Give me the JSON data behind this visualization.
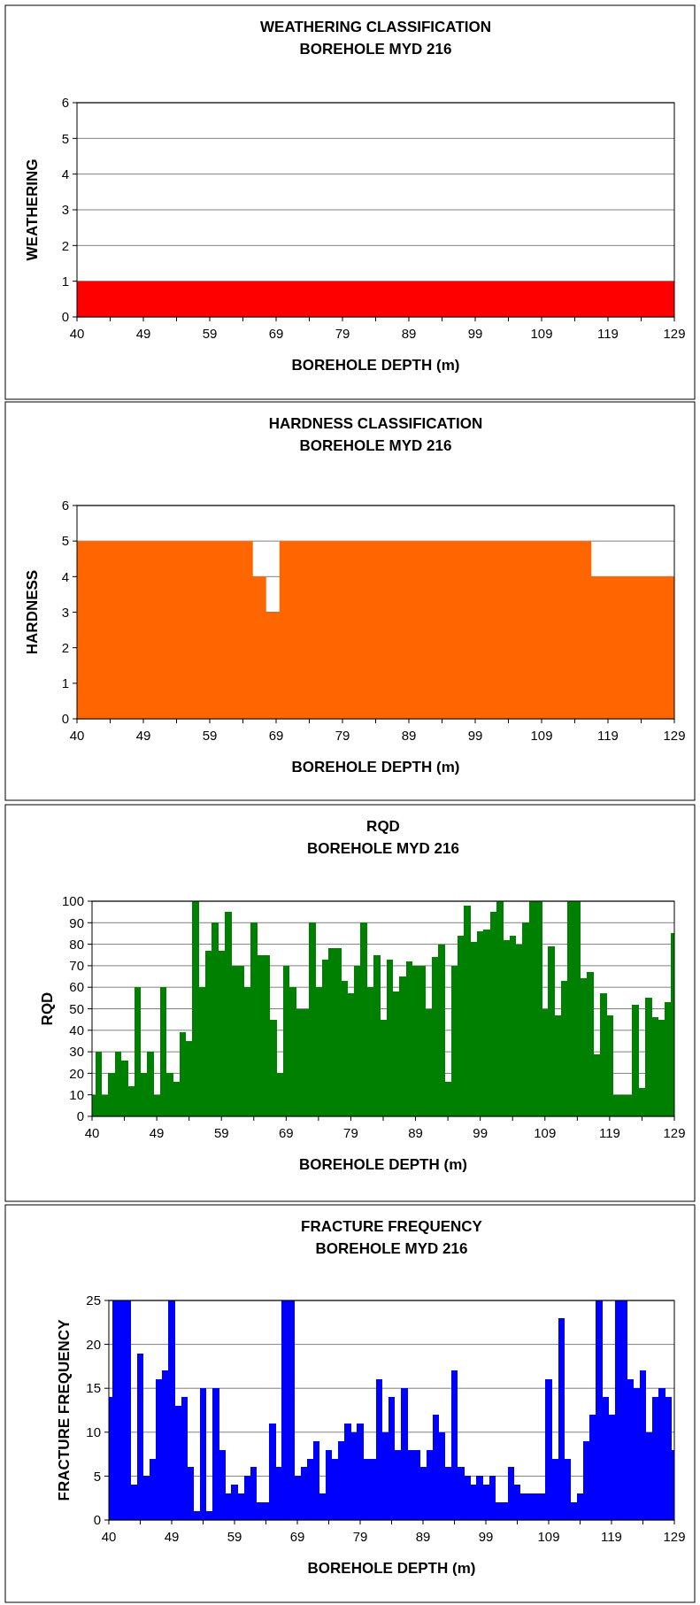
{
  "chart_data": [
    {
      "type": "area",
      "title": "WEATHERING CLASSIFICATION",
      "subtitle": "BOREHOLE MYD 216",
      "xlabel": "BOREHOLE DEPTH (m)",
      "ylabel": "WEATHERING",
      "color": "#ff0000",
      "ylim": [
        0,
        6
      ],
      "yticks": [
        0,
        1,
        2,
        3,
        4,
        5,
        6
      ],
      "grid": "y",
      "categories": [
        "40",
        null,
        null,
        null,
        null,
        null,
        null,
        null,
        null,
        null,
        "49",
        null,
        null,
        null,
        null,
        null,
        null,
        null,
        null,
        null,
        "59",
        null,
        null,
        null,
        null,
        null,
        null,
        null,
        null,
        null,
        "69",
        null,
        null,
        null,
        null,
        null,
        null,
        null,
        null,
        null,
        "79",
        null,
        null,
        null,
        null,
        null,
        null,
        null,
        null,
        null,
        "89",
        null,
        null,
        null,
        null,
        null,
        null,
        null,
        null,
        null,
        "99",
        null,
        null,
        null,
        null,
        null,
        null,
        null,
        null,
        null,
        "109",
        null,
        null,
        null,
        null,
        null,
        null,
        null,
        null,
        null,
        "119",
        null,
        null,
        null,
        null,
        null,
        null,
        null,
        null,
        null,
        "129"
      ],
      "values": [
        1,
        1,
        1,
        1,
        1,
        1,
        1,
        1,
        1,
        1,
        1,
        1,
        1,
        1,
        1,
        1,
        1,
        1,
        1,
        1,
        1,
        1,
        1,
        1,
        1,
        1,
        1,
        1,
        1,
        1,
        1,
        1,
        1,
        1,
        1,
        1,
        1,
        1,
        1,
        1,
        1,
        1,
        1,
        1,
        1,
        1,
        1,
        1,
        1,
        1,
        1,
        1,
        1,
        1,
        1,
        1,
        1,
        1,
        1,
        1,
        1,
        1,
        1,
        1,
        1,
        1,
        1,
        1,
        1,
        1,
        1,
        1,
        1,
        1,
        1,
        1,
        1,
        1,
        1,
        1,
        1,
        1,
        1,
        1,
        1,
        1,
        1,
        1,
        1,
        1,
        1
      ]
    },
    {
      "type": "area",
      "title": "HARDNESS CLASSIFICATION",
      "subtitle": "BOREHOLE MYD 216",
      "xlabel": "BOREHOLE DEPTH (m)",
      "ylabel": "HARDNESS",
      "color": "#ff6600",
      "ylim": [
        0,
        6
      ],
      "yticks": [
        0,
        1,
        2,
        3,
        4,
        5,
        6
      ],
      "grid": "y",
      "categories": [
        "40",
        null,
        null,
        null,
        null,
        null,
        null,
        null,
        null,
        null,
        "49",
        null,
        null,
        null,
        null,
        null,
        null,
        null,
        null,
        null,
        "59",
        null,
        null,
        null,
        null,
        null,
        null,
        null,
        null,
        null,
        "69",
        null,
        null,
        null,
        null,
        null,
        null,
        null,
        null,
        null,
        "79",
        null,
        null,
        null,
        null,
        null,
        null,
        null,
        null,
        null,
        "89",
        null,
        null,
        null,
        null,
        null,
        null,
        null,
        null,
        null,
        "99",
        null,
        null,
        null,
        null,
        null,
        null,
        null,
        null,
        null,
        "109",
        null,
        null,
        null,
        null,
        null,
        null,
        null,
        null,
        null,
        "119",
        null,
        null,
        null,
        null,
        null,
        null,
        null,
        null,
        null,
        "129"
      ],
      "values": [
        5,
        5,
        5,
        5,
        5,
        5,
        5,
        5,
        5,
        5,
        5,
        5,
        5,
        5,
        5,
        5,
        5,
        5,
        5,
        5,
        5,
        5,
        5,
        5,
        5,
        5,
        5,
        4,
        4,
        3,
        3,
        5,
        5,
        5,
        5,
        5,
        5,
        5,
        5,
        5,
        5,
        5,
        5,
        5,
        5,
        5,
        5,
        5,
        5,
        5,
        5,
        5,
        5,
        5,
        5,
        5,
        5,
        5,
        5,
        5,
        5,
        5,
        5,
        5,
        5,
        5,
        5,
        5,
        5,
        5,
        5,
        5,
        5,
        5,
        5,
        5,
        5,
        5,
        4,
        4,
        4,
        4,
        4,
        4,
        4,
        4,
        4,
        4,
        4,
        4,
        4
      ]
    },
    {
      "type": "bar",
      "title": "RQD",
      "subtitle": "BOREHOLE MYD 216",
      "xlabel": "BOREHOLE DEPTH (m)",
      "ylabel": "RQD",
      "color": "#008000",
      "ylim": [
        0,
        100
      ],
      "yticks": [
        0,
        10,
        20,
        30,
        40,
        50,
        60,
        70,
        80,
        90,
        100
      ],
      "grid": "y",
      "categories": [
        "40",
        null,
        null,
        null,
        null,
        null,
        null,
        null,
        null,
        null,
        "49",
        null,
        null,
        null,
        null,
        null,
        null,
        null,
        null,
        null,
        "59",
        null,
        null,
        null,
        null,
        null,
        null,
        null,
        null,
        null,
        "69",
        null,
        null,
        null,
        null,
        null,
        null,
        null,
        null,
        null,
        "79",
        null,
        null,
        null,
        null,
        null,
        null,
        null,
        null,
        null,
        "89",
        null,
        null,
        null,
        null,
        null,
        null,
        null,
        null,
        null,
        "99",
        null,
        null,
        null,
        null,
        null,
        null,
        null,
        null,
        null,
        "109",
        null,
        null,
        null,
        null,
        null,
        null,
        null,
        null,
        null,
        "119",
        null,
        null,
        null,
        null,
        null,
        null,
        null,
        null,
        null,
        "129"
      ],
      "values": [
        10,
        30,
        10,
        20,
        30,
        26,
        14,
        60,
        20,
        30,
        10,
        60,
        20,
        16,
        39,
        35,
        100,
        60,
        77,
        90,
        77,
        95,
        70,
        70,
        60,
        90,
        75,
        75,
        45,
        20,
        70,
        60,
        50,
        50,
        90,
        60,
        73,
        78,
        78,
        63,
        57,
        70,
        90,
        60,
        75,
        45,
        73,
        58,
        65,
        72,
        70,
        70,
        50,
        74,
        80,
        16,
        70,
        84,
        98,
        81,
        86,
        87,
        95,
        100,
        82,
        84,
        80,
        90,
        100,
        100,
        50,
        79,
        47,
        63,
        100,
        100,
        64,
        67,
        29,
        57,
        47,
        10,
        10,
        10,
        52,
        13,
        55,
        46,
        45,
        53,
        85
      ]
    },
    {
      "type": "bar",
      "title": "FRACTURE FREQUENCY",
      "subtitle": "BOREHOLE MYD 216",
      "xlabel": "BOREHOLE DEPTH (m)",
      "ylabel": "FRACTURE FREQUENCY",
      "color": "#0000ff",
      "ylim": [
        0,
        25
      ],
      "yticks": [
        0,
        5,
        10,
        15,
        20,
        25
      ],
      "grid": "y",
      "categories": [
        "40",
        null,
        null,
        null,
        null,
        null,
        null,
        null,
        null,
        null,
        "49",
        null,
        null,
        null,
        null,
        null,
        null,
        null,
        null,
        null,
        "59",
        null,
        null,
        null,
        null,
        null,
        null,
        null,
        null,
        null,
        "69",
        null,
        null,
        null,
        null,
        null,
        null,
        null,
        null,
        null,
        "79",
        null,
        null,
        null,
        null,
        null,
        null,
        null,
        null,
        null,
        "89",
        null,
        null,
        null,
        null,
        null,
        null,
        null,
        null,
        null,
        "99",
        null,
        null,
        null,
        null,
        null,
        null,
        null,
        null,
        null,
        "109",
        null,
        null,
        null,
        null,
        null,
        null,
        null,
        null,
        null,
        "119",
        null,
        null,
        null,
        null,
        null,
        null,
        null,
        null,
        null,
        "129"
      ],
      "values": [
        14,
        25,
        25,
        25,
        4,
        19,
        5,
        7,
        16,
        17,
        25,
        13,
        14,
        6,
        1,
        15,
        1,
        15,
        8,
        3,
        4,
        3,
        5,
        6,
        2,
        2,
        11,
        6,
        25,
        25,
        5,
        6,
        7,
        9,
        3,
        8,
        7,
        9,
        11,
        10,
        11,
        7,
        7,
        16,
        10,
        14,
        8,
        15,
        8,
        8,
        6,
        8,
        12,
        10,
        6,
        17,
        6,
        5,
        4,
        5,
        4,
        5,
        2,
        2,
        6,
        4,
        3,
        3,
        3,
        3,
        16,
        7,
        23,
        7,
        2,
        3,
        9,
        12,
        25,
        14,
        12,
        25,
        25,
        16,
        15,
        17,
        10,
        14,
        15,
        14,
        8
      ]
    }
  ]
}
